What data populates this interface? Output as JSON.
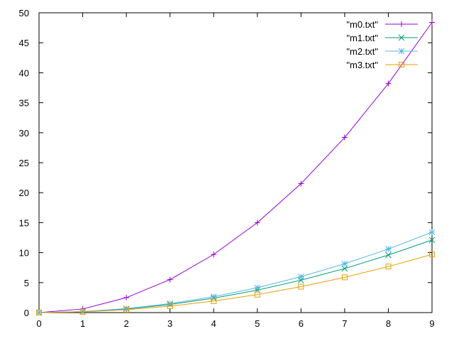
{
  "chart_data": {
    "type": "line",
    "title": "",
    "xlabel": "",
    "ylabel": "",
    "xlim": [
      0,
      9
    ],
    "ylim": [
      0,
      50
    ],
    "xticks": [
      0,
      1,
      2,
      3,
      4,
      5,
      6,
      7,
      8,
      9
    ],
    "yticks": [
      0,
      5,
      10,
      15,
      20,
      25,
      30,
      35,
      40,
      45,
      50
    ],
    "grid": false,
    "legend_position": "top-right",
    "x": [
      0,
      1,
      2,
      3,
      4,
      5,
      6,
      7,
      8,
      9
    ],
    "series": [
      {
        "name": "\"m0.txt\"",
        "color": "#9400d3",
        "marker": "plus",
        "values": [
          0,
          0.6,
          2.5,
          5.5,
          9.7,
          15.0,
          21.5,
          29.2,
          38.2,
          48.4
        ]
      },
      {
        "name": "\"m1.txt\"",
        "color": "#009e73",
        "marker": "cross",
        "values": [
          0,
          0.15,
          0.6,
          1.35,
          2.4,
          3.75,
          5.4,
          7.35,
          9.6,
          12.1
        ]
      },
      {
        "name": "\"m2.txt\"",
        "color": "#56b4e9",
        "marker": "star",
        "values": [
          0,
          0.17,
          0.67,
          1.5,
          2.65,
          4.15,
          5.98,
          8.15,
          10.6,
          13.4
        ]
      },
      {
        "name": "\"m3.txt\"",
        "color": "#e69f00",
        "marker": "square",
        "values": [
          0,
          0.12,
          0.48,
          1.08,
          1.92,
          3.0,
          4.32,
          5.88,
          7.68,
          9.7
        ]
      }
    ]
  }
}
